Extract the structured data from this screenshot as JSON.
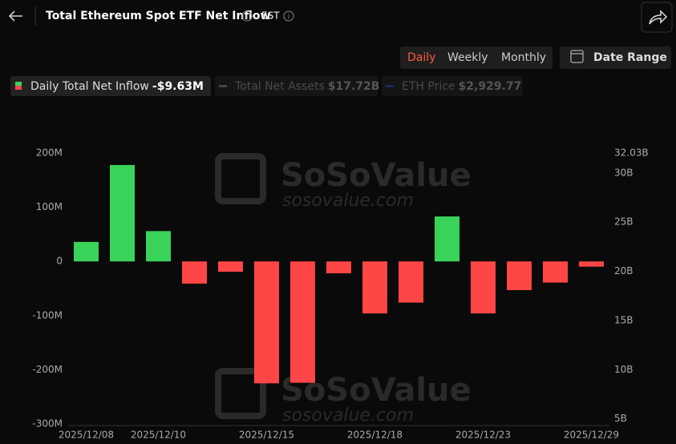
{
  "header": {
    "title": "Total Ethereum Spot ETF Net Inflow",
    "timezone": "EST"
  },
  "tabs": [
    "Daily",
    "Weekly",
    "Monthly"
  ],
  "active_tab": 0,
  "date_range": "Date Range",
  "legend": [
    {
      "name": "Daily Total Net Inflow",
      "value": "-$9.63M",
      "active": true
    },
    {
      "name": "Total Net Assets",
      "value": "$17.72B",
      "active": false
    },
    {
      "name": "ETH Price",
      "value": "$2,929.77",
      "active": false
    }
  ],
  "watermark": {
    "brand": "SoSoValue",
    "site": "sosovalue.com"
  },
  "chart_data": {
    "type": "bar",
    "categories": [
      "2025/12/08",
      null,
      "2025/12/10",
      null,
      null,
      "2025/12/15",
      null,
      null,
      "2025/12/18",
      null,
      null,
      "2025/12/23",
      null,
      null,
      "2025/12/29"
    ],
    "values": [
      36,
      178,
      56,
      -41,
      -19,
      -225,
      -224,
      -22,
      -96,
      -76,
      83,
      -96,
      -53,
      -39,
      -9.63
    ],
    "positive_color": "#3ad35a",
    "negative_color": "#ff4646",
    "ylim": [
      -300,
      200
    ],
    "yticks": [
      {
        "value": -300,
        "label": "-300M"
      },
      {
        "value": -200,
        "label": "-200M"
      },
      {
        "value": -100,
        "label": "-100M"
      },
      0,
      {
        "value": 100,
        "label": "100M"
      },
      {
        "value": 200,
        "label": "200M"
      }
    ],
    "y2lim": [
      4.48,
      32.03
    ],
    "y2ticks": [
      {
        "value": 5,
        "label": "5B"
      },
      {
        "value": 10,
        "label": "10B"
      },
      {
        "value": 15,
        "label": "15B"
      },
      {
        "value": 20,
        "label": "20B"
      },
      {
        "value": 25,
        "label": "25B"
      },
      {
        "value": 30,
        "label": "30B"
      },
      {
        "value": 32.03,
        "label": "32.03B"
      }
    ],
    "grid": false
  }
}
